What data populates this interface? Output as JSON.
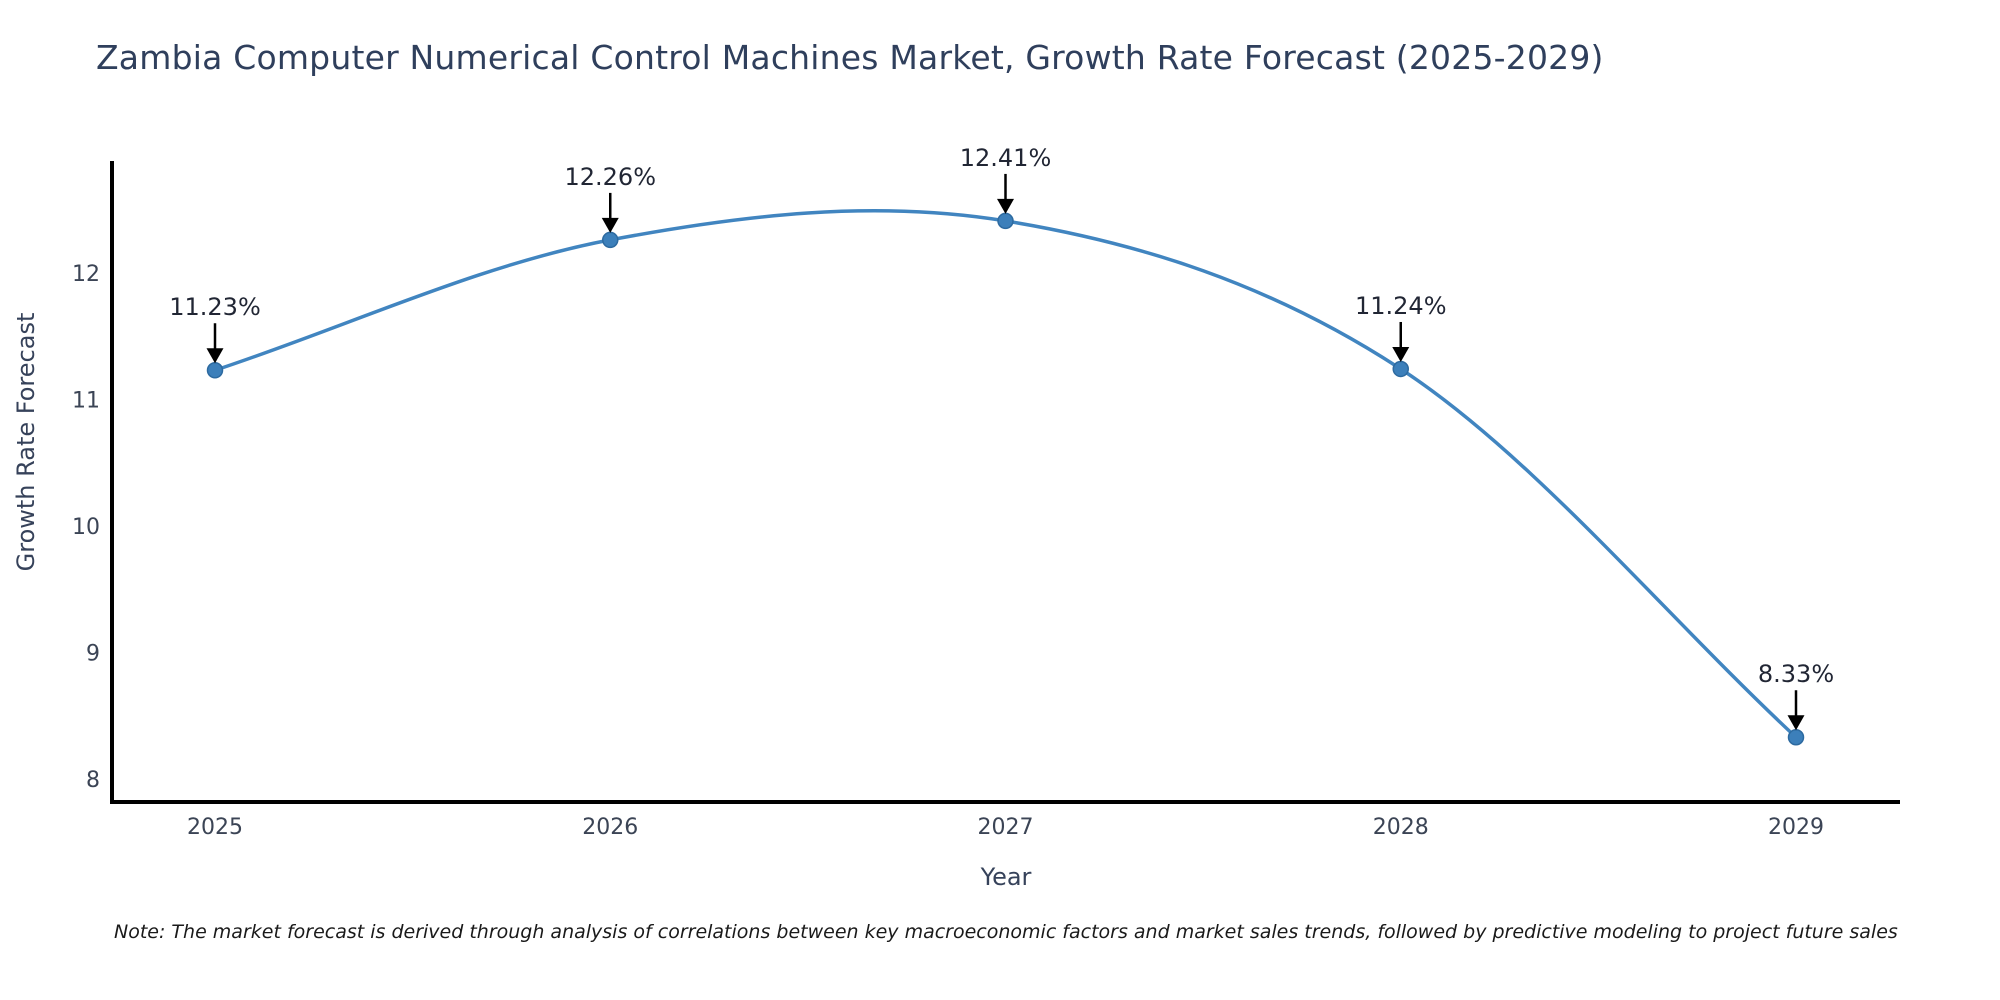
{
  "chart_data": {
    "type": "line",
    "title": "Zambia Computer Numerical Control Machines Market, Growth Rate Forecast (2025-2029)",
    "xlabel": "Year",
    "ylabel": "Growth Rate Forecast",
    "note": "Note: The market forecast is derived through analysis of correlations between key macroeconomic factors and market sales trends, followed by predictive modeling to project future sales",
    "categories": [
      "2025",
      "2026",
      "2027",
      "2028",
      "2029"
    ],
    "values": [
      11.23,
      12.26,
      12.41,
      11.24,
      8.33
    ],
    "point_labels": [
      "11.23%",
      "12.26%",
      "12.41%",
      "11.24%",
      "8.33%"
    ],
    "yticks": [
      8,
      9,
      10,
      11,
      12
    ],
    "ylim": [
      7.82,
      12.89
    ],
    "grid": false,
    "legend": "none",
    "smooth": true,
    "marker": "circle",
    "annotation_arrow": "down",
    "colors": {
      "line": "#4185c0",
      "marker_fill": "#3c7fba",
      "marker_edge": "#2d6aa0",
      "axis_spine": "#000000",
      "arrow": "#000000",
      "title_text": "#2f3f5c",
      "tick_text": "#3b4455",
      "axis_label_text": "#36425a",
      "annotation_text": "#212634",
      "note_text": "#1a1a1a"
    }
  }
}
